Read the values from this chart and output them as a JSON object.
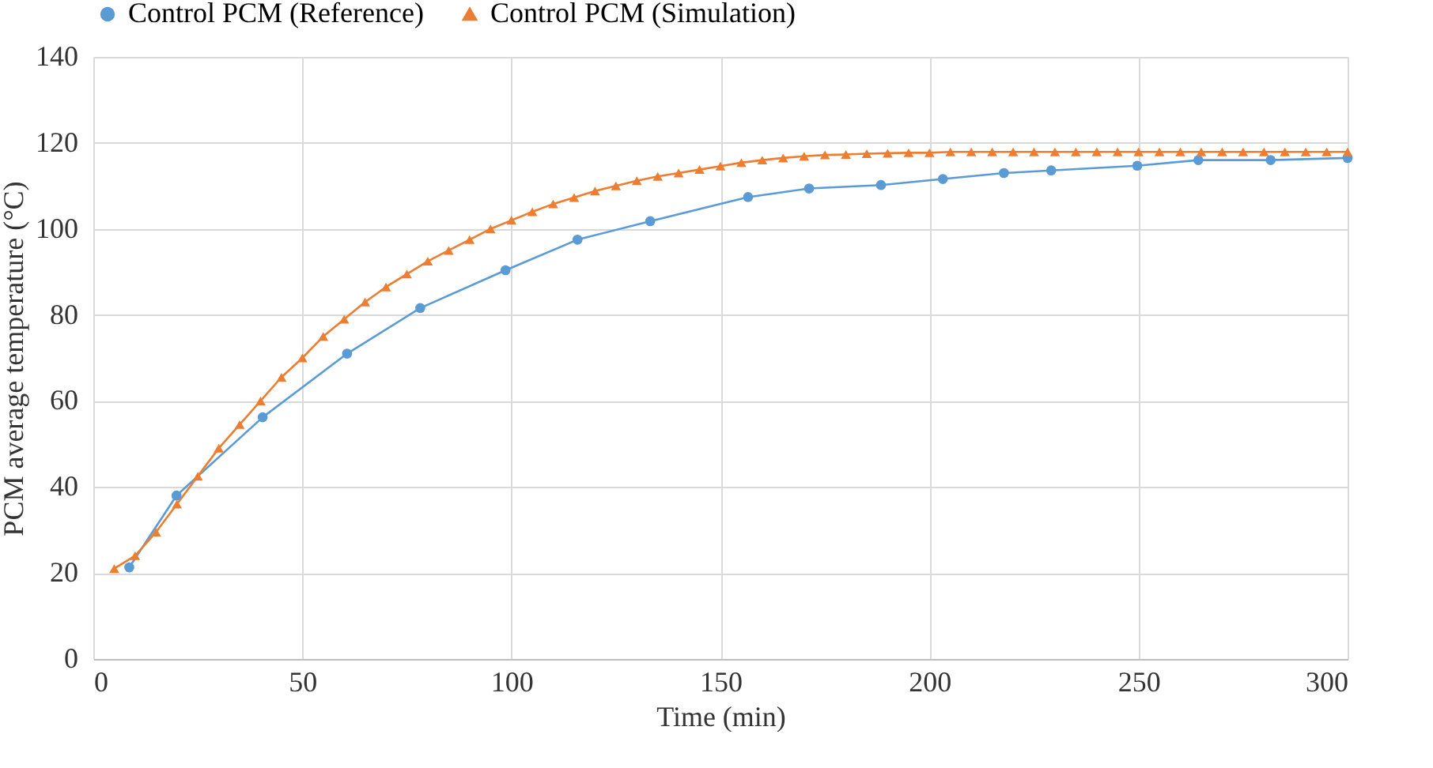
{
  "chart_data": {
    "type": "line",
    "xlabel": "Time (min)",
    "ylabel": "PCM average temperature (°C)",
    "xlim": [
      0,
      300
    ],
    "xticks": [
      0,
      50,
      100,
      150,
      200,
      250,
      300
    ],
    "ylim": [
      0,
      140
    ],
    "yticks": [
      0,
      20,
      40,
      60,
      80,
      100,
      120,
      140
    ],
    "grid": true,
    "legend": "top",
    "line_style": "solid",
    "series": [
      {
        "name": "Control PCM (Reference)",
        "color": "#5b9bd5",
        "marker": "circle",
        "x": [
          8.6,
          19.9,
          40.5,
          60.7,
          78.2,
          98.6,
          115.8,
          133.2,
          156.6,
          171.2,
          188.4,
          203.2,
          217.8,
          229.1,
          249.7,
          264.3,
          281.6,
          300
        ],
        "values": [
          21.3,
          38,
          56.2,
          71,
          81.6,
          90.4,
          97.5,
          101.8,
          107.4,
          109.4,
          110.2,
          111.6,
          113,
          113.6,
          114.7,
          116,
          116,
          116.5
        ]
      },
      {
        "name": "Control PCM (Simulation)",
        "color": "#ed7d31",
        "marker": "triangle",
        "x": [
          5,
          10,
          15,
          20,
          25,
          30,
          35,
          40,
          45,
          50,
          55,
          60,
          65,
          70,
          75,
          80,
          85,
          90,
          95,
          100,
          105,
          110,
          115,
          120,
          125,
          130,
          135,
          140,
          145,
          150,
          155,
          160,
          165,
          170,
          175,
          180,
          185,
          190,
          195,
          200,
          205,
          210,
          215,
          220,
          225,
          230,
          235,
          240,
          245,
          250,
          255,
          260,
          265,
          270,
          275,
          280,
          285,
          290,
          295,
          300
        ],
        "values": [
          21,
          24,
          29.5,
          36,
          42.5,
          49,
          54.5,
          60,
          65.5,
          70,
          75,
          79,
          83,
          86.5,
          89.5,
          92.5,
          95,
          97.5,
          100,
          102,
          104,
          105.8,
          107.3,
          108.8,
          110,
          111.2,
          112.2,
          113,
          113.8,
          114.6,
          115.4,
          116,
          116.5,
          116.9,
          117.2,
          117.3,
          117.5,
          117.6,
          117.7,
          117.7,
          117.9,
          117.9,
          117.9,
          117.9,
          117.9,
          117.9,
          117.9,
          117.9,
          117.9,
          117.9,
          117.9,
          117.9,
          117.9,
          117.9,
          117.9,
          117.9,
          117.9,
          117.9,
          117.9,
          117.9
        ]
      }
    ]
  }
}
